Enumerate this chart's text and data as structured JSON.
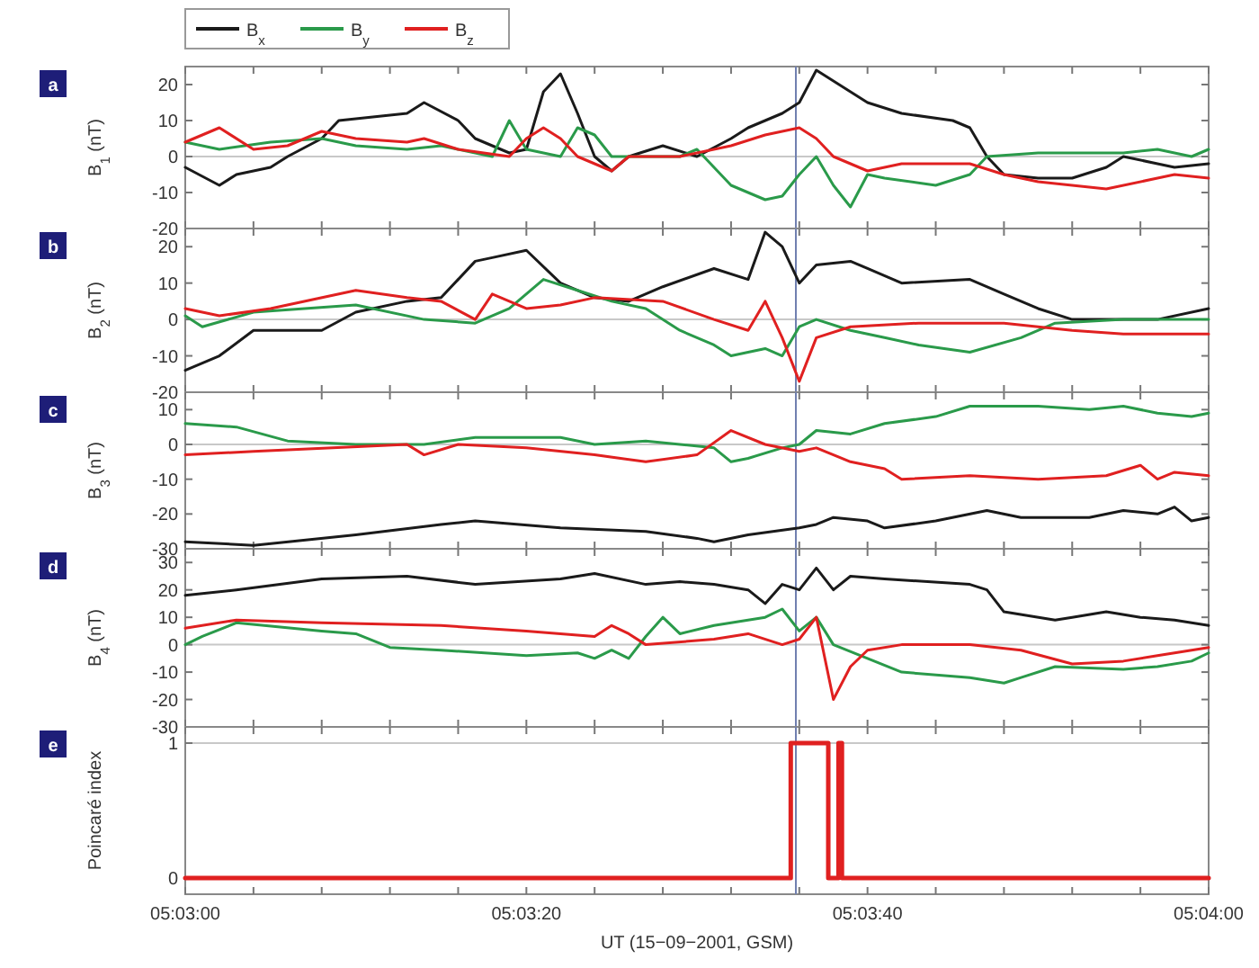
{
  "chart_data": [
    {
      "type": "line",
      "title": "a",
      "ylabel": "B$_{1}$ (nT)",
      "legend": "top left",
      "tick_labels": "y",
      "xlim": [
        "2001-09-15T05:03:00",
        "2001-09-15T05:04:00"
      ],
      "ylim": [
        -20,
        25
      ],
      "yticks": [
        -20,
        -10,
        0,
        10,
        20
      ],
      "xticks": [
        {
          "value": "2001-09-15T05:03:00",
          "label": null
        },
        {
          "value": "2001-09-15T05:03:04",
          "label": null
        },
        {
          "value": "2001-09-15T05:03:08",
          "label": null
        },
        {
          "value": "2001-09-15T05:03:12",
          "label": null
        },
        {
          "value": "2001-09-15T05:03:16",
          "label": null
        },
        {
          "value": "2001-09-15T05:03:20",
          "label": null
        },
        {
          "value": "2001-09-15T05:03:24",
          "label": null
        },
        {
          "value": "2001-09-15T05:03:28",
          "label": null
        },
        {
          "value": "2001-09-15T05:03:32",
          "label": null
        },
        {
          "value": "2001-09-15T05:03:36",
          "label": null
        },
        {
          "value": "2001-09-15T05:03:40",
          "label": null
        },
        {
          "value": "2001-09-15T05:03:44",
          "label": null
        },
        {
          "value": "2001-09-15T05:03:48",
          "label": null
        },
        {
          "value": "2001-09-15T05:03:52",
          "label": null
        },
        {
          "value": "2001-09-15T05:03:56",
          "label": null
        },
        {
          "value": "2001-09-15T05:04:00",
          "label": null
        }
      ],
      "ref_lines": [
        {
          "axis": "y",
          "value": 0,
          "color": "#c8c8c8"
        },
        {
          "axis": "x",
          "value": "2001-09-15T05:03:35.8",
          "color": "#7080b0"
        }
      ],
      "series": [
        {
          "name": "B$_{x}$",
          "color": "#1a1a1a",
          "x": [
            "2001-09-15T05:03:00",
            "2001-09-15T05:03:02",
            "2001-09-15T05:03:03",
            "2001-09-15T05:03:05",
            "2001-09-15T05:03:06",
            "2001-09-15T05:03:08",
            "2001-09-15T05:03:09",
            "2001-09-15T05:03:11",
            "2001-09-15T05:03:13",
            "2001-09-15T05:03:14",
            "2001-09-15T05:03:16",
            "2001-09-15T05:03:17",
            "2001-09-15T05:03:19",
            "2001-09-15T05:03:20",
            "2001-09-15T05:03:21",
            "2001-09-15T05:03:22",
            "2001-09-15T05:03:23",
            "2001-09-15T05:03:24",
            "2001-09-15T05:03:25",
            "2001-09-15T05:03:26",
            "2001-09-15T05:03:28",
            "2001-09-15T05:03:30",
            "2001-09-15T05:03:32",
            "2001-09-15T05:03:33",
            "2001-09-15T05:03:35",
            "2001-09-15T05:03:36",
            "2001-09-15T05:03:37",
            "2001-09-15T05:03:39",
            "2001-09-15T05:03:40",
            "2001-09-15T05:03:42",
            "2001-09-15T05:03:45",
            "2001-09-15T05:03:46",
            "2001-09-15T05:03:47",
            "2001-09-15T05:03:48",
            "2001-09-15T05:03:50",
            "2001-09-15T05:03:52",
            "2001-09-15T05:03:54",
            "2001-09-15T05:03:55",
            "2001-09-15T05:03:57",
            "2001-09-15T05:03:58",
            "2001-09-15T05:04:00"
          ],
          "values": [
            -3,
            -8,
            -5,
            -3,
            0,
            5,
            10,
            11,
            12,
            15,
            10,
            5,
            1,
            2,
            18,
            23,
            12,
            0,
            -4,
            0,
            3,
            0,
            5,
            8,
            12,
            15,
            24,
            18,
            15,
            12,
            10,
            8,
            0,
            -5,
            -6,
            -6,
            -3,
            0,
            -2,
            -3,
            -2
          ]
        },
        {
          "name": "B$_{y}$",
          "color": "#2a9a4a",
          "x": [
            "2001-09-15T05:03:00",
            "2001-09-15T05:03:02",
            "2001-09-15T05:03:05",
            "2001-09-15T05:03:08",
            "2001-09-15T05:03:10",
            "2001-09-15T05:03:13",
            "2001-09-15T05:03:15",
            "2001-09-15T05:03:17",
            "2001-09-15T05:03:18",
            "2001-09-15T05:03:19",
            "2001-09-15T05:03:20",
            "2001-09-15T05:03:22",
            "2001-09-15T05:03:23",
            "2001-09-15T05:03:24",
            "2001-09-15T05:03:25",
            "2001-09-15T05:03:29",
            "2001-09-15T05:03:30",
            "2001-09-15T05:03:32",
            "2001-09-15T05:03:34",
            "2001-09-15T05:03:35",
            "2001-09-15T05:03:36",
            "2001-09-15T05:03:37",
            "2001-09-15T05:03:38",
            "2001-09-15T05:03:39",
            "2001-09-15T05:03:40",
            "2001-09-15T05:03:41",
            "2001-09-15T05:03:44",
            "2001-09-15T05:03:46",
            "2001-09-15T05:03:47",
            "2001-09-15T05:03:50",
            "2001-09-15T05:03:55",
            "2001-09-15T05:03:57",
            "2001-09-15T05:03:59",
            "2001-09-15T05:04:00"
          ],
          "values": [
            4,
            2,
            4,
            5,
            3,
            2,
            3,
            1,
            0,
            10,
            2,
            0,
            8,
            6,
            0,
            0,
            2,
            -8,
            -12,
            -11,
            -5,
            0,
            -8,
            -14,
            -5,
            -6,
            -8,
            -5,
            0,
            1,
            1,
            2,
            0,
            2
          ]
        },
        {
          "name": "B$_{z}$",
          "color": "#e02020",
          "x": [
            "2001-09-15T05:03:00",
            "2001-09-15T05:03:02",
            "2001-09-15T05:03:04",
            "2001-09-15T05:03:06",
            "2001-09-15T05:03:08",
            "2001-09-15T05:03:10",
            "2001-09-15T05:03:13",
            "2001-09-15T05:03:14",
            "2001-09-15T05:03:16",
            "2001-09-15T05:03:19",
            "2001-09-15T05:03:20",
            "2001-09-15T05:03:21",
            "2001-09-15T05:03:22",
            "2001-09-15T05:03:23",
            "2001-09-15T05:03:25",
            "2001-09-15T05:03:26",
            "2001-09-15T05:03:29",
            "2001-09-15T05:03:32",
            "2001-09-15T05:03:34",
            "2001-09-15T05:03:36",
            "2001-09-15T05:03:37",
            "2001-09-15T05:03:38",
            "2001-09-15T05:03:40",
            "2001-09-15T05:03:42",
            "2001-09-15T05:03:46",
            "2001-09-15T05:03:48",
            "2001-09-15T05:03:50",
            "2001-09-15T05:03:54",
            "2001-09-15T05:03:57",
            "2001-09-15T05:03:58",
            "2001-09-15T05:04:00"
          ],
          "values": [
            4,
            8,
            2,
            3,
            7,
            5,
            4,
            5,
            2,
            0,
            5,
            8,
            5,
            0,
            -4,
            0,
            0,
            3,
            6,
            8,
            5,
            0,
            -4,
            -2,
            -2,
            -5,
            -7,
            -9,
            -6,
            -5,
            -6
          ]
        }
      ]
    },
    {
      "type": "line",
      "title": "b",
      "ylabel": "B$_{2}$ (nT)",
      "tick_labels": "y",
      "xlim": [
        "2001-09-15T05:03:00",
        "2001-09-15T05:04:00"
      ],
      "ylim": [
        -20,
        25
      ],
      "yticks": [
        -20,
        -10,
        0,
        10,
        20
      ],
      "xticks": [
        {
          "value": "2001-09-15T05:03:00",
          "label": null
        },
        {
          "value": "2001-09-15T05:03:04",
          "label": null
        },
        {
          "value": "2001-09-15T05:03:08",
          "label": null
        },
        {
          "value": "2001-09-15T05:03:12",
          "label": null
        },
        {
          "value": "2001-09-15T05:03:16",
          "label": null
        },
        {
          "value": "2001-09-15T05:03:20",
          "label": null
        },
        {
          "value": "2001-09-15T05:03:24",
          "label": null
        },
        {
          "value": "2001-09-15T05:03:28",
          "label": null
        },
        {
          "value": "2001-09-15T05:03:32",
          "label": null
        },
        {
          "value": "2001-09-15T05:03:36",
          "label": null
        },
        {
          "value": "2001-09-15T05:03:40",
          "label": null
        },
        {
          "value": "2001-09-15T05:03:44",
          "label": null
        },
        {
          "value": "2001-09-15T05:03:48",
          "label": null
        },
        {
          "value": "2001-09-15T05:03:52",
          "label": null
        },
        {
          "value": "2001-09-15T05:03:56",
          "label": null
        },
        {
          "value": "2001-09-15T05:04:00",
          "label": null
        }
      ],
      "ref_lines": [
        {
          "axis": "y",
          "value": 0,
          "color": "#c8c8c8"
        },
        {
          "axis": "x",
          "value": "2001-09-15T05:03:35.8",
          "color": "#7080b0"
        }
      ],
      "series": [
        {
          "color": "#1a1a1a",
          "x": [
            "2001-09-15T05:03:00",
            "2001-09-15T05:03:02",
            "2001-09-15T05:03:04",
            "2001-09-15T05:03:08",
            "2001-09-15T05:03:10",
            "2001-09-15T05:03:13",
            "2001-09-15T05:03:15",
            "2001-09-15T05:03:17",
            "2001-09-15T05:03:18",
            "2001-09-15T05:03:20",
            "2001-09-15T05:03:22",
            "2001-09-15T05:03:24",
            "2001-09-15T05:03:26",
            "2001-09-15T05:03:28",
            "2001-09-15T05:03:31",
            "2001-09-15T05:03:33",
            "2001-09-15T05:03:34",
            "2001-09-15T05:03:35",
            "2001-09-15T05:03:36",
            "2001-09-15T05:03:37",
            "2001-09-15T05:03:39",
            "2001-09-15T05:03:40",
            "2001-09-15T05:03:42",
            "2001-09-15T05:03:46",
            "2001-09-15T05:03:48",
            "2001-09-15T05:03:50",
            "2001-09-15T05:03:52",
            "2001-09-15T05:03:57",
            "2001-09-15T05:04:00"
          ],
          "values": [
            -14,
            -10,
            -3,
            -3,
            2,
            5,
            6,
            16,
            17,
            19,
            10,
            6,
            5,
            9,
            14,
            11,
            24,
            20,
            10,
            15,
            16,
            14,
            10,
            11,
            7,
            3,
            0,
            0,
            3
          ]
        },
        {
          "color": "#2a9a4a",
          "x": [
            "2001-09-15T05:03:00",
            "2001-09-15T05:03:01",
            "2001-09-15T05:03:04",
            "2001-09-15T05:03:10",
            "2001-09-15T05:03:14",
            "2001-09-15T05:03:17",
            "2001-09-15T05:03:19",
            "2001-09-15T05:03:21",
            "2001-09-15T05:03:23",
            "2001-09-15T05:03:25",
            "2001-09-15T05:03:27",
            "2001-09-15T05:03:29",
            "2001-09-15T05:03:31",
            "2001-09-15T05:03:32",
            "2001-09-15T05:03:34",
            "2001-09-15T05:03:35",
            "2001-09-15T05:03:36",
            "2001-09-15T05:03:37",
            "2001-09-15T05:03:39",
            "2001-09-15T05:03:41",
            "2001-09-15T05:03:43",
            "2001-09-15T05:03:46",
            "2001-09-15T05:03:49",
            "2001-09-15T05:03:51",
            "2001-09-15T05:03:55",
            "2001-09-15T05:04:00"
          ],
          "values": [
            1,
            -2,
            2,
            4,
            0,
            -1,
            3,
            11,
            8,
            5,
            3,
            -3,
            -7,
            -10,
            -8,
            -10,
            -2,
            0,
            -3,
            -5,
            -7,
            -9,
            -5,
            -1,
            0,
            0
          ]
        },
        {
          "color": "#e02020",
          "x": [
            "2001-09-15T05:03:00",
            "2001-09-15T05:03:02",
            "2001-09-15T05:03:05",
            "2001-09-15T05:03:10",
            "2001-09-15T05:03:13",
            "2001-09-15T05:03:15",
            "2001-09-15T05:03:17",
            "2001-09-15T05:03:18",
            "2001-09-15T05:03:20",
            "2001-09-15T05:03:22",
            "2001-09-15T05:03:24",
            "2001-09-15T05:03:28",
            "2001-09-15T05:03:31",
            "2001-09-15T05:03:33",
            "2001-09-15T05:03:34",
            "2001-09-15T05:03:35",
            "2001-09-15T05:03:36",
            "2001-09-15T05:03:37",
            "2001-09-15T05:03:39",
            "2001-09-15T05:03:43",
            "2001-09-15T05:03:48",
            "2001-09-15T05:03:52",
            "2001-09-15T05:03:55",
            "2001-09-15T05:04:00"
          ],
          "values": [
            3,
            1,
            3,
            8,
            6,
            5,
            0,
            7,
            3,
            4,
            6,
            5,
            0,
            -3,
            5,
            -5,
            -17,
            -5,
            -2,
            -1,
            -1,
            -3,
            -4,
            -4
          ]
        }
      ]
    },
    {
      "type": "line",
      "title": "c",
      "ylabel": "B$_{3}$ (nT)",
      "tick_labels": "y",
      "xlim": [
        "2001-09-15T05:03:00",
        "2001-09-15T05:04:00"
      ],
      "ylim": [
        -30,
        15
      ],
      "yticks": [
        -30,
        -20,
        -10,
        0,
        10
      ],
      "xticks": [
        {
          "value": "2001-09-15T05:03:00",
          "label": null
        },
        {
          "value": "2001-09-15T05:03:04",
          "label": null
        },
        {
          "value": "2001-09-15T05:03:08",
          "label": null
        },
        {
          "value": "2001-09-15T05:03:12",
          "label": null
        },
        {
          "value": "2001-09-15T05:03:16",
          "label": null
        },
        {
          "value": "2001-09-15T05:03:20",
          "label": null
        },
        {
          "value": "2001-09-15T05:03:24",
          "label": null
        },
        {
          "value": "2001-09-15T05:03:28",
          "label": null
        },
        {
          "value": "2001-09-15T05:03:32",
          "label": null
        },
        {
          "value": "2001-09-15T05:03:36",
          "label": null
        },
        {
          "value": "2001-09-15T05:03:40",
          "label": null
        },
        {
          "value": "2001-09-15T05:03:44",
          "label": null
        },
        {
          "value": "2001-09-15T05:03:48",
          "label": null
        },
        {
          "value": "2001-09-15T05:03:52",
          "label": null
        },
        {
          "value": "2001-09-15T05:03:56",
          "label": null
        },
        {
          "value": "2001-09-15T05:04:00",
          "label": null
        }
      ],
      "ref_lines": [
        {
          "axis": "y",
          "value": 0,
          "color": "#c8c8c8"
        },
        {
          "axis": "x",
          "value": "2001-09-15T05:03:35.8",
          "color": "#7080b0"
        }
      ],
      "series": [
        {
          "color": "#1a1a1a",
          "x": [
            "2001-09-15T05:03:00",
            "2001-09-15T05:03:04",
            "2001-09-15T05:03:10",
            "2001-09-15T05:03:15",
            "2001-09-15T05:03:17",
            "2001-09-15T05:03:22",
            "2001-09-15T05:03:27",
            "2001-09-15T05:03:30",
            "2001-09-15T05:03:31",
            "2001-09-15T05:03:33",
            "2001-09-15T05:03:36",
            "2001-09-15T05:03:37",
            "2001-09-15T05:03:38",
            "2001-09-15T05:03:40",
            "2001-09-15T05:03:41",
            "2001-09-15T05:03:44",
            "2001-09-15T05:03:47",
            "2001-09-15T05:03:49",
            "2001-09-15T05:03:53",
            "2001-09-15T05:03:55",
            "2001-09-15T05:03:57",
            "2001-09-15T05:03:58",
            "2001-09-15T05:03:59",
            "2001-09-15T05:04:00"
          ],
          "values": [
            -28,
            -29,
            -26,
            -23,
            -22,
            -24,
            -25,
            -27,
            -28,
            -26,
            -24,
            -23,
            -21,
            -22,
            -24,
            -22,
            -19,
            -21,
            -21,
            -19,
            -20,
            -18,
            -22,
            -21
          ]
        },
        {
          "color": "#2a9a4a",
          "x": [
            "2001-09-15T05:03:00",
            "2001-09-15T05:03:03",
            "2001-09-15T05:03:06",
            "2001-09-15T05:03:10",
            "2001-09-15T05:03:14",
            "2001-09-15T05:03:17",
            "2001-09-15T05:03:22",
            "2001-09-15T05:03:24",
            "2001-09-15T05:03:27",
            "2001-09-15T05:03:29",
            "2001-09-15T05:03:31",
            "2001-09-15T05:03:32",
            "2001-09-15T05:03:33",
            "2001-09-15T05:03:35",
            "2001-09-15T05:03:36",
            "2001-09-15T05:03:37",
            "2001-09-15T05:03:39",
            "2001-09-15T05:03:41",
            "2001-09-15T05:03:44",
            "2001-09-15T05:03:46",
            "2001-09-15T05:03:50",
            "2001-09-15T05:03:53",
            "2001-09-15T05:03:55",
            "2001-09-15T05:03:57",
            "2001-09-15T05:03:59",
            "2001-09-15T05:04:00"
          ],
          "values": [
            6,
            5,
            1,
            0,
            0,
            2,
            2,
            0,
            1,
            0,
            -1,
            -5,
            -4,
            -1,
            0,
            4,
            3,
            6,
            8,
            11,
            11,
            10,
            11,
            9,
            8,
            9
          ]
        },
        {
          "color": "#e02020",
          "x": [
            "2001-09-15T05:03:00",
            "2001-09-15T05:03:04",
            "2001-09-15T05:03:13",
            "2001-09-15T05:03:14",
            "2001-09-15T05:03:16",
            "2001-09-15T05:03:20",
            "2001-09-15T05:03:24",
            "2001-09-15T05:03:27",
            "2001-09-15T05:03:30",
            "2001-09-15T05:03:32",
            "2001-09-15T05:03:34",
            "2001-09-15T05:03:36",
            "2001-09-15T05:03:37",
            "2001-09-15T05:03:39",
            "2001-09-15T05:03:41",
            "2001-09-15T05:03:42",
            "2001-09-15T05:03:46",
            "2001-09-15T05:03:50",
            "2001-09-15T05:03:54",
            "2001-09-15T05:03:56",
            "2001-09-15T05:03:57",
            "2001-09-15T05:03:58",
            "2001-09-15T05:04:00"
          ],
          "values": [
            -3,
            -2,
            0,
            -3,
            0,
            -1,
            -3,
            -5,
            -3,
            4,
            0,
            -2,
            -1,
            -5,
            -7,
            -10,
            -9,
            -10,
            -9,
            -6,
            -10,
            -8,
            -9
          ]
        }
      ]
    },
    {
      "type": "line",
      "title": "d",
      "ylabel": "B$_{4}$ (nT)",
      "tick_labels": "y",
      "xlim": [
        "2001-09-15T05:03:00",
        "2001-09-15T05:04:00"
      ],
      "ylim": [
        -30,
        35
      ],
      "yticks": [
        -30,
        -20,
        -10,
        0,
        10,
        20,
        30
      ],
      "xticks": [
        {
          "value": "2001-09-15T05:03:00",
          "label": null
        },
        {
          "value": "2001-09-15T05:03:04",
          "label": null
        },
        {
          "value": "2001-09-15T05:03:08",
          "label": null
        },
        {
          "value": "2001-09-15T05:03:12",
          "label": null
        },
        {
          "value": "2001-09-15T05:03:16",
          "label": null
        },
        {
          "value": "2001-09-15T05:03:20",
          "label": null
        },
        {
          "value": "2001-09-15T05:03:24",
          "label": null
        },
        {
          "value": "2001-09-15T05:03:28",
          "label": null
        },
        {
          "value": "2001-09-15T05:03:32",
          "label": null
        },
        {
          "value": "2001-09-15T05:03:36",
          "label": null
        },
        {
          "value": "2001-09-15T05:03:40",
          "label": null
        },
        {
          "value": "2001-09-15T05:03:44",
          "label": null
        },
        {
          "value": "2001-09-15T05:03:48",
          "label": null
        },
        {
          "value": "2001-09-15T05:03:52",
          "label": null
        },
        {
          "value": "2001-09-15T05:03:56",
          "label": null
        },
        {
          "value": "2001-09-15T05:04:00",
          "label": null
        }
      ],
      "ref_lines": [
        {
          "axis": "y",
          "value": 0,
          "color": "#c8c8c8"
        },
        {
          "axis": "x",
          "value": "2001-09-15T05:03:35.8",
          "color": "#7080b0"
        }
      ],
      "series": [
        {
          "color": "#1a1a1a",
          "x": [
            "2001-09-15T05:03:00",
            "2001-09-15T05:03:03",
            "2001-09-15T05:03:08",
            "2001-09-15T05:03:13",
            "2001-09-15T05:03:17",
            "2001-09-15T05:03:22",
            "2001-09-15T05:03:24",
            "2001-09-15T05:03:27",
            "2001-09-15T05:03:29",
            "2001-09-15T05:03:31",
            "2001-09-15T05:03:33",
            "2001-09-15T05:03:34",
            "2001-09-15T05:03:35",
            "2001-09-15T05:03:36",
            "2001-09-15T05:03:37",
            "2001-09-15T05:03:38",
            "2001-09-15T05:03:39",
            "2001-09-15T05:03:41",
            "2001-09-15T05:03:46",
            "2001-09-15T05:03:47",
            "2001-09-15T05:03:48",
            "2001-09-15T05:03:51",
            "2001-09-15T05:03:52",
            "2001-09-15T05:03:54",
            "2001-09-15T05:03:56",
            "2001-09-15T05:03:58",
            "2001-09-15T05:04:00"
          ],
          "values": [
            18,
            20,
            24,
            25,
            22,
            24,
            26,
            22,
            23,
            22,
            20,
            15,
            22,
            20,
            28,
            20,
            25,
            24,
            22,
            20,
            12,
            9,
            10,
            12,
            10,
            9,
            7
          ]
        },
        {
          "color": "#2a9a4a",
          "x": [
            "2001-09-15T05:03:00",
            "2001-09-15T05:03:01",
            "2001-09-15T05:03:03",
            "2001-09-15T05:03:08",
            "2001-09-15T05:03:10",
            "2001-09-15T05:03:12",
            "2001-09-15T05:03:15",
            "2001-09-15T05:03:20",
            "2001-09-15T05:03:23",
            "2001-09-15T05:03:24",
            "2001-09-15T05:03:25",
            "2001-09-15T05:03:26",
            "2001-09-15T05:03:27",
            "2001-09-15T05:03:28",
            "2001-09-15T05:03:29",
            "2001-09-15T05:03:31",
            "2001-09-15T05:03:34",
            "2001-09-15T05:03:35",
            "2001-09-15T05:03:36",
            "2001-09-15T05:03:37",
            "2001-09-15T05:03:38",
            "2001-09-15T05:03:40",
            "2001-09-15T05:03:42",
            "2001-09-15T05:03:46",
            "2001-09-15T05:03:48",
            "2001-09-15T05:03:49",
            "2001-09-15T05:03:51",
            "2001-09-15T05:03:55",
            "2001-09-15T05:03:57",
            "2001-09-15T05:03:59",
            "2001-09-15T05:04:00"
          ],
          "values": [
            0,
            3,
            8,
            5,
            4,
            -1,
            -2,
            -4,
            -3,
            -5,
            -2,
            -5,
            3,
            10,
            4,
            7,
            10,
            13,
            5,
            10,
            0,
            -5,
            -10,
            -12,
            -14,
            -12,
            -8,
            -9,
            -8,
            -6,
            -3
          ]
        },
        {
          "color": "#e02020",
          "x": [
            "2001-09-15T05:03:00",
            "2001-09-15T05:03:03",
            "2001-09-15T05:03:08",
            "2001-09-15T05:03:15",
            "2001-09-15T05:03:20",
            "2001-09-15T05:03:24",
            "2001-09-15T05:03:25",
            "2001-09-15T05:03:26",
            "2001-09-15T05:03:27",
            "2001-09-15T05:03:31",
            "2001-09-15T05:03:33",
            "2001-09-15T05:03:35",
            "2001-09-15T05:03:36",
            "2001-09-15T05:03:37",
            "2001-09-15T05:03:38",
            "2001-09-15T05:03:39",
            "2001-09-15T05:03:40",
            "2001-09-15T05:03:42",
            "2001-09-15T05:03:46",
            "2001-09-15T05:03:49",
            "2001-09-15T05:03:52",
            "2001-09-15T05:03:55",
            "2001-09-15T05:03:57",
            "2001-09-15T05:04:00"
          ],
          "values": [
            6,
            9,
            8,
            7,
            5,
            3,
            7,
            4,
            0,
            2,
            4,
            0,
            2,
            10,
            -20,
            -8,
            -2,
            0,
            0,
            -2,
            -7,
            -6,
            -4,
            -1
          ]
        }
      ]
    },
    {
      "type": "step",
      "title": "e",
      "ylabel": "Poincaré index",
      "xlabel": "UT (15−09−2001, GSM)",
      "xlim": [
        "2001-09-15T05:03:00",
        "2001-09-15T05:04:00"
      ],
      "ylim": [
        -0.12,
        1.12
      ],
      "yticks": [
        0,
        1
      ],
      "xticks": [
        {
          "value": "2001-09-15T05:03:00",
          "label": "05:03:00"
        },
        {
          "value": "2001-09-15T05:03:04",
          "label": null
        },
        {
          "value": "2001-09-15T05:03:08",
          "label": null
        },
        {
          "value": "2001-09-15T05:03:12",
          "label": null
        },
        {
          "value": "2001-09-15T05:03:16",
          "label": null
        },
        {
          "value": "2001-09-15T05:03:20",
          "label": "05:03:20"
        },
        {
          "value": "2001-09-15T05:03:24",
          "label": null
        },
        {
          "value": "2001-09-15T05:03:28",
          "label": null
        },
        {
          "value": "2001-09-15T05:03:32",
          "label": null
        },
        {
          "value": "2001-09-15T05:03:36",
          "label": null
        },
        {
          "value": "2001-09-15T05:03:40",
          "label": "05:03:40"
        },
        {
          "value": "2001-09-15T05:03:44",
          "label": null
        },
        {
          "value": "2001-09-15T05:03:48",
          "label": null
        },
        {
          "value": "2001-09-15T05:03:52",
          "label": null
        },
        {
          "value": "2001-09-15T05:03:56",
          "label": null
        },
        {
          "value": "2001-09-15T05:04:00",
          "label": "05:04:00"
        }
      ],
      "ref_lines": [
        {
          "axis": "y",
          "value": 1,
          "color": "#c8c8c8"
        },
        {
          "axis": "x",
          "value": "2001-09-15T05:03:35.8",
          "color": "#7080b0"
        }
      ],
      "series": [
        {
          "color": "#e02020",
          "x": [
            "2001-09-15T05:03:00",
            "2001-09-15T05:03:35.5",
            "2001-09-15T05:03:37.7",
            "2001-09-15T05:03:38.3",
            "2001-09-15T05:03:38.5",
            "2001-09-15T05:04:00"
          ],
          "values": [
            0,
            1,
            0,
            1,
            0,
            0
          ]
        }
      ]
    }
  ]
}
